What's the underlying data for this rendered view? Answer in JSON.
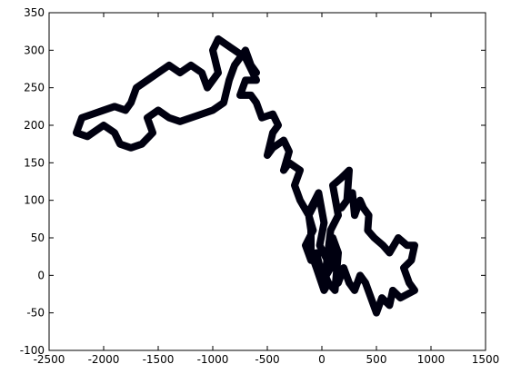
{
  "chart_data": {
    "type": "line",
    "color": "#000010",
    "x": [
      0,
      -50,
      -100,
      -150,
      -80,
      -120,
      -50,
      -100,
      -30,
      20,
      -20,
      50,
      0,
      80,
      100,
      150,
      120,
      60,
      30,
      80,
      150,
      100,
      180,
      250,
      230,
      180,
      280,
      300,
      350,
      380,
      430,
      420,
      480,
      560,
      620,
      700,
      780,
      850,
      820,
      750,
      800,
      850,
      720,
      650,
      620,
      550,
      500,
      450,
      400,
      350,
      300,
      250,
      200,
      150,
      100,
      60,
      20,
      -50,
      -100,
      -100,
      -120,
      -200,
      -250,
      -200,
      -300,
      -350,
      -300,
      -350,
      -450,
      -500,
      -450,
      -400,
      -450,
      -550,
      -600,
      -650,
      -750,
      -700,
      -600,
      -700,
      -800,
      -900,
      -950,
      -1000,
      -950,
      -1050,
      -1100,
      -1200,
      -1300,
      -1400,
      -1500,
      -1600,
      -1700,
      -1750,
      -1800,
      -1900,
      -2000,
      -2100,
      -2200,
      -2250,
      -2150,
      -2000,
      -1900,
      -1850,
      -1750,
      -1650,
      -1550,
      -1600,
      -1500,
      -1400,
      -1300,
      -1200,
      -1100,
      -1000,
      -900,
      -850,
      -800,
      -700,
      -650,
      -600
    ],
    "values": [
      0,
      30,
      20,
      40,
      60,
      80,
      100,
      90,
      110,
      70,
      40,
      20,
      -10,
      10,
      50,
      30,
      -20,
      -10,
      0,
      60,
      80,
      120,
      130,
      140,
      100,
      90,
      110,
      80,
      100,
      90,
      80,
      60,
      50,
      40,
      30,
      50,
      40,
      40,
      20,
      10,
      -10,
      -20,
      -30,
      -20,
      -40,
      -30,
      -50,
      -30,
      -10,
      0,
      -20,
      -10,
      10,
      -10,
      -15,
      -10,
      -20,
      10,
      30,
      60,
      80,
      100,
      120,
      140,
      150,
      140,
      165,
      180,
      170,
      160,
      190,
      200,
      215,
      210,
      230,
      240,
      240,
      260,
      260,
      290,
      300,
      310,
      315,
      300,
      270,
      250,
      270,
      280,
      270,
      280,
      270,
      260,
      250,
      230,
      220,
      225,
      220,
      215,
      210,
      190,
      185,
      200,
      190,
      175,
      170,
      175,
      190,
      210,
      220,
      210,
      205,
      210,
      215,
      220,
      230,
      260,
      280,
      300,
      280,
      270
    ],
    "xlim": [
      -2500,
      1500
    ],
    "xticks": [
      -2500,
      -2000,
      -1500,
      -1000,
      -500,
      0,
      500,
      1000,
      1500
    ],
    "ylim": [
      -100,
      350
    ],
    "yticks": [
      -100,
      -50,
      0,
      50,
      100,
      150,
      200,
      250,
      300,
      350
    ]
  }
}
